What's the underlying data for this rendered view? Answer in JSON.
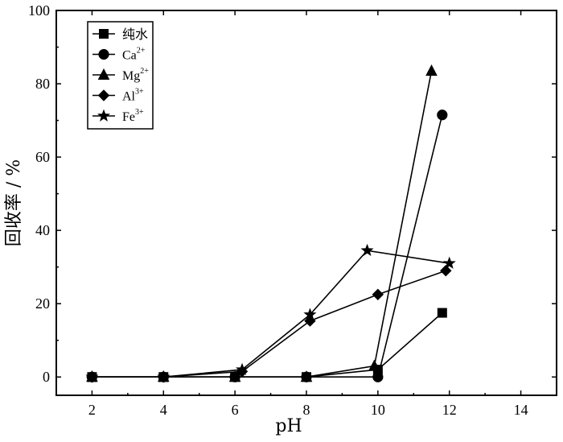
{
  "chart_data": {
    "type": "line",
    "title": "",
    "xlabel": "pH",
    "ylabel": "回收率 / %",
    "xlim": [
      1,
      15
    ],
    "ylim": [
      -5,
      100
    ],
    "xticks": [
      2,
      4,
      6,
      8,
      10,
      12,
      14
    ],
    "yticks": [
      0,
      20,
      40,
      60,
      80,
      100
    ],
    "grid": false,
    "legend_position": "top-left",
    "series": [
      {
        "name": "纯水",
        "name_sup": "",
        "marker": "square",
        "x": [
          2,
          4,
          6,
          8,
          10,
          11.8
        ],
        "y": [
          0,
          0,
          0,
          0,
          2,
          17.5
        ]
      },
      {
        "name": "Ca",
        "name_sup": "2+",
        "marker": "circle",
        "x": [
          2,
          4,
          6,
          8,
          10,
          11.8
        ],
        "y": [
          0,
          0,
          0,
          0,
          0,
          71.5
        ]
      },
      {
        "name": "Mg",
        "name_sup": "2+",
        "marker": "triangle",
        "x": [
          2,
          4,
          6,
          8,
          9.9,
          11.5
        ],
        "y": [
          0,
          0,
          0,
          0,
          3,
          83.5
        ]
      },
      {
        "name": "Al",
        "name_sup": "3+",
        "marker": "diamond",
        "x": [
          2,
          4,
          6.2,
          8.1,
          10,
          11.9
        ],
        "y": [
          0,
          0,
          1.5,
          15.3,
          22.5,
          29
        ]
      },
      {
        "name": "Fe",
        "name_sup": "3+",
        "marker": "star",
        "x": [
          2,
          4,
          6.2,
          8.1,
          9.7,
          12
        ],
        "y": [
          0,
          0,
          2,
          17,
          34.5,
          31
        ]
      }
    ]
  }
}
